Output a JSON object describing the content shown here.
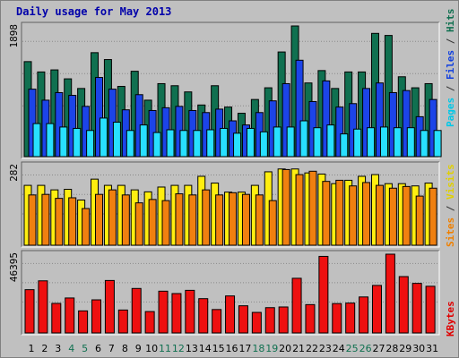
{
  "title": "Daily usage for May 2013",
  "ylabels": {
    "top": "1898",
    "middle": "282",
    "bottom": "46395"
  },
  "side_labels": {
    "top": [
      {
        "text": "Pages",
        "color": "#00c8e8"
      },
      {
        "text": " / ",
        "color": "#333333"
      },
      {
        "text": "Files",
        "color": "#1040e0"
      },
      {
        "text": " / ",
        "color": "#333333"
      },
      {
        "text": "Hits",
        "color": "#107050"
      }
    ],
    "middle": [
      {
        "text": "Sites",
        "color": "#f08000"
      },
      {
        "text": " / ",
        "color": "#333333"
      },
      {
        "text": "Visits",
        "color": "#e0d000"
      }
    ],
    "bottom": [
      {
        "text": "KBytes",
        "color": "#e00000"
      }
    ]
  },
  "colors": {
    "hits": "#107050",
    "files": "#1c44e8",
    "pages": "#28e0ff",
    "visits": "#ffee10",
    "sites": "#f08010",
    "kbytes": "#ee1010",
    "weekday_label": "#000000",
    "weekend_label": "#107050",
    "title": "#0000aa",
    "panel": "#c0c0c0"
  },
  "chart_data": {
    "type": "bar",
    "title": "Daily usage for May 2013",
    "categories": [
      "1",
      "2",
      "3",
      "4",
      "5",
      "6",
      "7",
      "8",
      "9",
      "10",
      "11",
      "12",
      "13",
      "14",
      "15",
      "16",
      "17",
      "18",
      "19",
      "20",
      "21",
      "22",
      "23",
      "24",
      "25",
      "26",
      "27",
      "28",
      "29",
      "30",
      "31"
    ],
    "weekend_days": [
      "4",
      "5",
      "11",
      "12",
      "18",
      "19",
      "25",
      "26"
    ],
    "panels": [
      {
        "name": "Pages / Files / Hits",
        "ylim": [
          0,
          1898
        ],
        "series": [
          {
            "name": "Hits",
            "values": [
              1380,
              1230,
              1260,
              1130,
              990,
              1510,
              1410,
              1020,
              1240,
              820,
              1060,
              1030,
              940,
              750,
              1030,
              720,
              630,
              830,
              1000,
              1520,
              1910,
              1070,
              1250,
              990,
              1230,
              1230,
              1790,
              1760,
              1160,
              1000,
              1060
            ]
          },
          {
            "name": "Files",
            "values": [
              980,
              820,
              930,
              890,
              730,
              1150,
              980,
              680,
              900,
              670,
              710,
              730,
              670,
              640,
              690,
              520,
              460,
              640,
              810,
              1060,
              1400,
              800,
              1100,
              720,
              770,
              990,
              1070,
              930,
              960,
              580,
              830
            ]
          },
          {
            "name": "Pages",
            "values": [
              480,
              480,
              430,
              410,
              380,
              560,
              500,
              380,
              460,
              350,
              390,
              380,
              380,
              390,
              410,
              340,
              410,
              360,
              430,
              430,
              520,
              420,
              460,
              330,
              400,
              420,
              430,
              420,
              420,
              380,
              380
            ]
          }
        ]
      },
      {
        "name": "Sites / Visits",
        "ylim": [
          0,
          282
        ],
        "series": [
          {
            "name": "Visits",
            "values": [
              212,
              212,
              196,
              198,
              160,
              234,
              212,
              212,
              196,
              189,
              206,
              212,
              212,
              244,
              220,
              188,
              188,
              212,
              260,
              270,
              270,
              256,
              252,
              218,
              230,
              244,
              250,
              218,
              218,
              210,
              220
            ]
          },
          {
            "name": "Sites",
            "values": [
              178,
              180,
              166,
              168,
              130,
              180,
              196,
              178,
              150,
              162,
              158,
              182,
              178,
              196,
              178,
              186,
              180,
              178,
              158,
              268,
              250,
              262,
              226,
              230,
              210,
              222,
              212,
              202,
              208,
              174,
              202
            ]
          }
        ]
      },
      {
        "name": "KBytes",
        "ylim": [
          0,
          46395
        ],
        "series": [
          {
            "name": "KBytes",
            "values": [
              25500,
              30700,
              17400,
              20600,
              13000,
              19500,
              30900,
              13500,
              26200,
              12600,
              24600,
              23200,
              25100,
              20200,
              13800,
              21800,
              16000,
              12100,
              14900,
              15300,
              32200,
              16700,
              45100,
              17300,
              17600,
              21200,
              28000,
              48500,
              33200,
              29200,
              27500
            ]
          }
        ]
      }
    ]
  }
}
